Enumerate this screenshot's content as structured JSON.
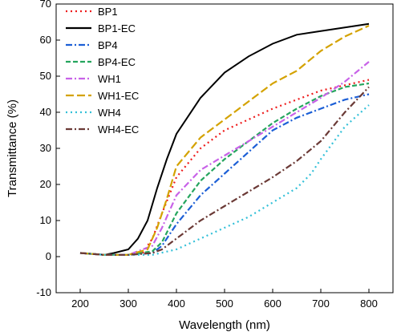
{
  "chart_data": {
    "type": "line",
    "title": "",
    "xlabel": "Wavelength (nm)",
    "ylabel": "Transmittance (%)",
    "xlim": [
      150,
      850
    ],
    "ylim": [
      -10,
      70
    ],
    "x_ticks": [
      200,
      300,
      400,
      500,
      600,
      700,
      800
    ],
    "y_ticks": [
      -10,
      0,
      10,
      20,
      30,
      40,
      50,
      60,
      70
    ],
    "grid": false,
    "legend_position": "top-left",
    "series": [
      {
        "name": "BP1",
        "color": "#ee1c1c",
        "dash": "dot",
        "x": [
          200,
          250,
          300,
          330,
          350,
          370,
          400,
          450,
          500,
          550,
          600,
          650,
          700,
          750,
          800
        ],
        "y": [
          1,
          0.5,
          0.5,
          1,
          5,
          12,
          22,
          30,
          35,
          38,
          41,
          43.5,
          46,
          47.5,
          49
        ]
      },
      {
        "name": "BP1-EC",
        "color": "#000000",
        "dash": "solid",
        "x": [
          200,
          250,
          270,
          300,
          320,
          340,
          360,
          380,
          400,
          450,
          500,
          550,
          600,
          650,
          700,
          750,
          800
        ],
        "y": [
          1,
          0.5,
          1,
          2,
          5,
          10,
          19,
          27,
          34,
          44,
          51,
          55.5,
          59,
          61.5,
          62.5,
          63.5,
          64.5
        ]
      },
      {
        "name": "BP4",
        "color": "#1c5fd6",
        "dash": "dashdot",
        "x": [
          200,
          250,
          300,
          350,
          370,
          400,
          450,
          500,
          550,
          600,
          650,
          700,
          750,
          800
        ],
        "y": [
          1,
          0.5,
          0.5,
          1,
          3,
          9,
          17,
          23,
          29,
          35,
          38.5,
          41,
          43.5,
          45
        ]
      },
      {
        "name": "BP4-EC",
        "color": "#25a55e",
        "dash": "dash",
        "x": [
          200,
          250,
          300,
          350,
          370,
          400,
          450,
          500,
          550,
          600,
          650,
          700,
          750,
          800
        ],
        "y": [
          1,
          0.5,
          0.5,
          1.5,
          4,
          12,
          21,
          27,
          32,
          37,
          41,
          44.5,
          47,
          48
        ]
      },
      {
        "name": "WH1",
        "color": "#c862e8",
        "dash": "dashdot",
        "x": [
          200,
          250,
          300,
          350,
          370,
          400,
          450,
          500,
          550,
          600,
          650,
          700,
          750,
          800
        ],
        "y": [
          1,
          0.5,
          0.5,
          3,
          8,
          17,
          24,
          28,
          32,
          36,
          40,
          44,
          48.5,
          54
        ]
      },
      {
        "name": "WH1-EC",
        "color": "#d4a200",
        "dash": "longdash",
        "x": [
          200,
          250,
          300,
          340,
          360,
          380,
          400,
          450,
          500,
          550,
          600,
          650,
          700,
          750,
          800
        ],
        "y": [
          1,
          0.5,
          0.5,
          2,
          8,
          16,
          25,
          33,
          38,
          43,
          48,
          51.5,
          57,
          61,
          64
        ]
      },
      {
        "name": "WH4",
        "color": "#33c0d8",
        "dash": "dot",
        "x": [
          200,
          250,
          300,
          350,
          400,
          450,
          500,
          550,
          600,
          650,
          680,
          700,
          750,
          800
        ],
        "y": [
          1,
          0.5,
          0.5,
          0.5,
          2,
          5,
          8,
          11,
          15,
          19,
          23,
          27,
          36,
          42
        ]
      },
      {
        "name": "WH4-EC",
        "color": "#6b3a36",
        "dash": "dashdot",
        "x": [
          200,
          250,
          300,
          350,
          370,
          400,
          450,
          500,
          550,
          600,
          650,
          700,
          750,
          800
        ],
        "y": [
          1,
          0.5,
          0.5,
          1,
          2,
          5,
          10,
          14,
          18,
          22,
          26.5,
          32,
          40,
          47
        ]
      }
    ]
  }
}
